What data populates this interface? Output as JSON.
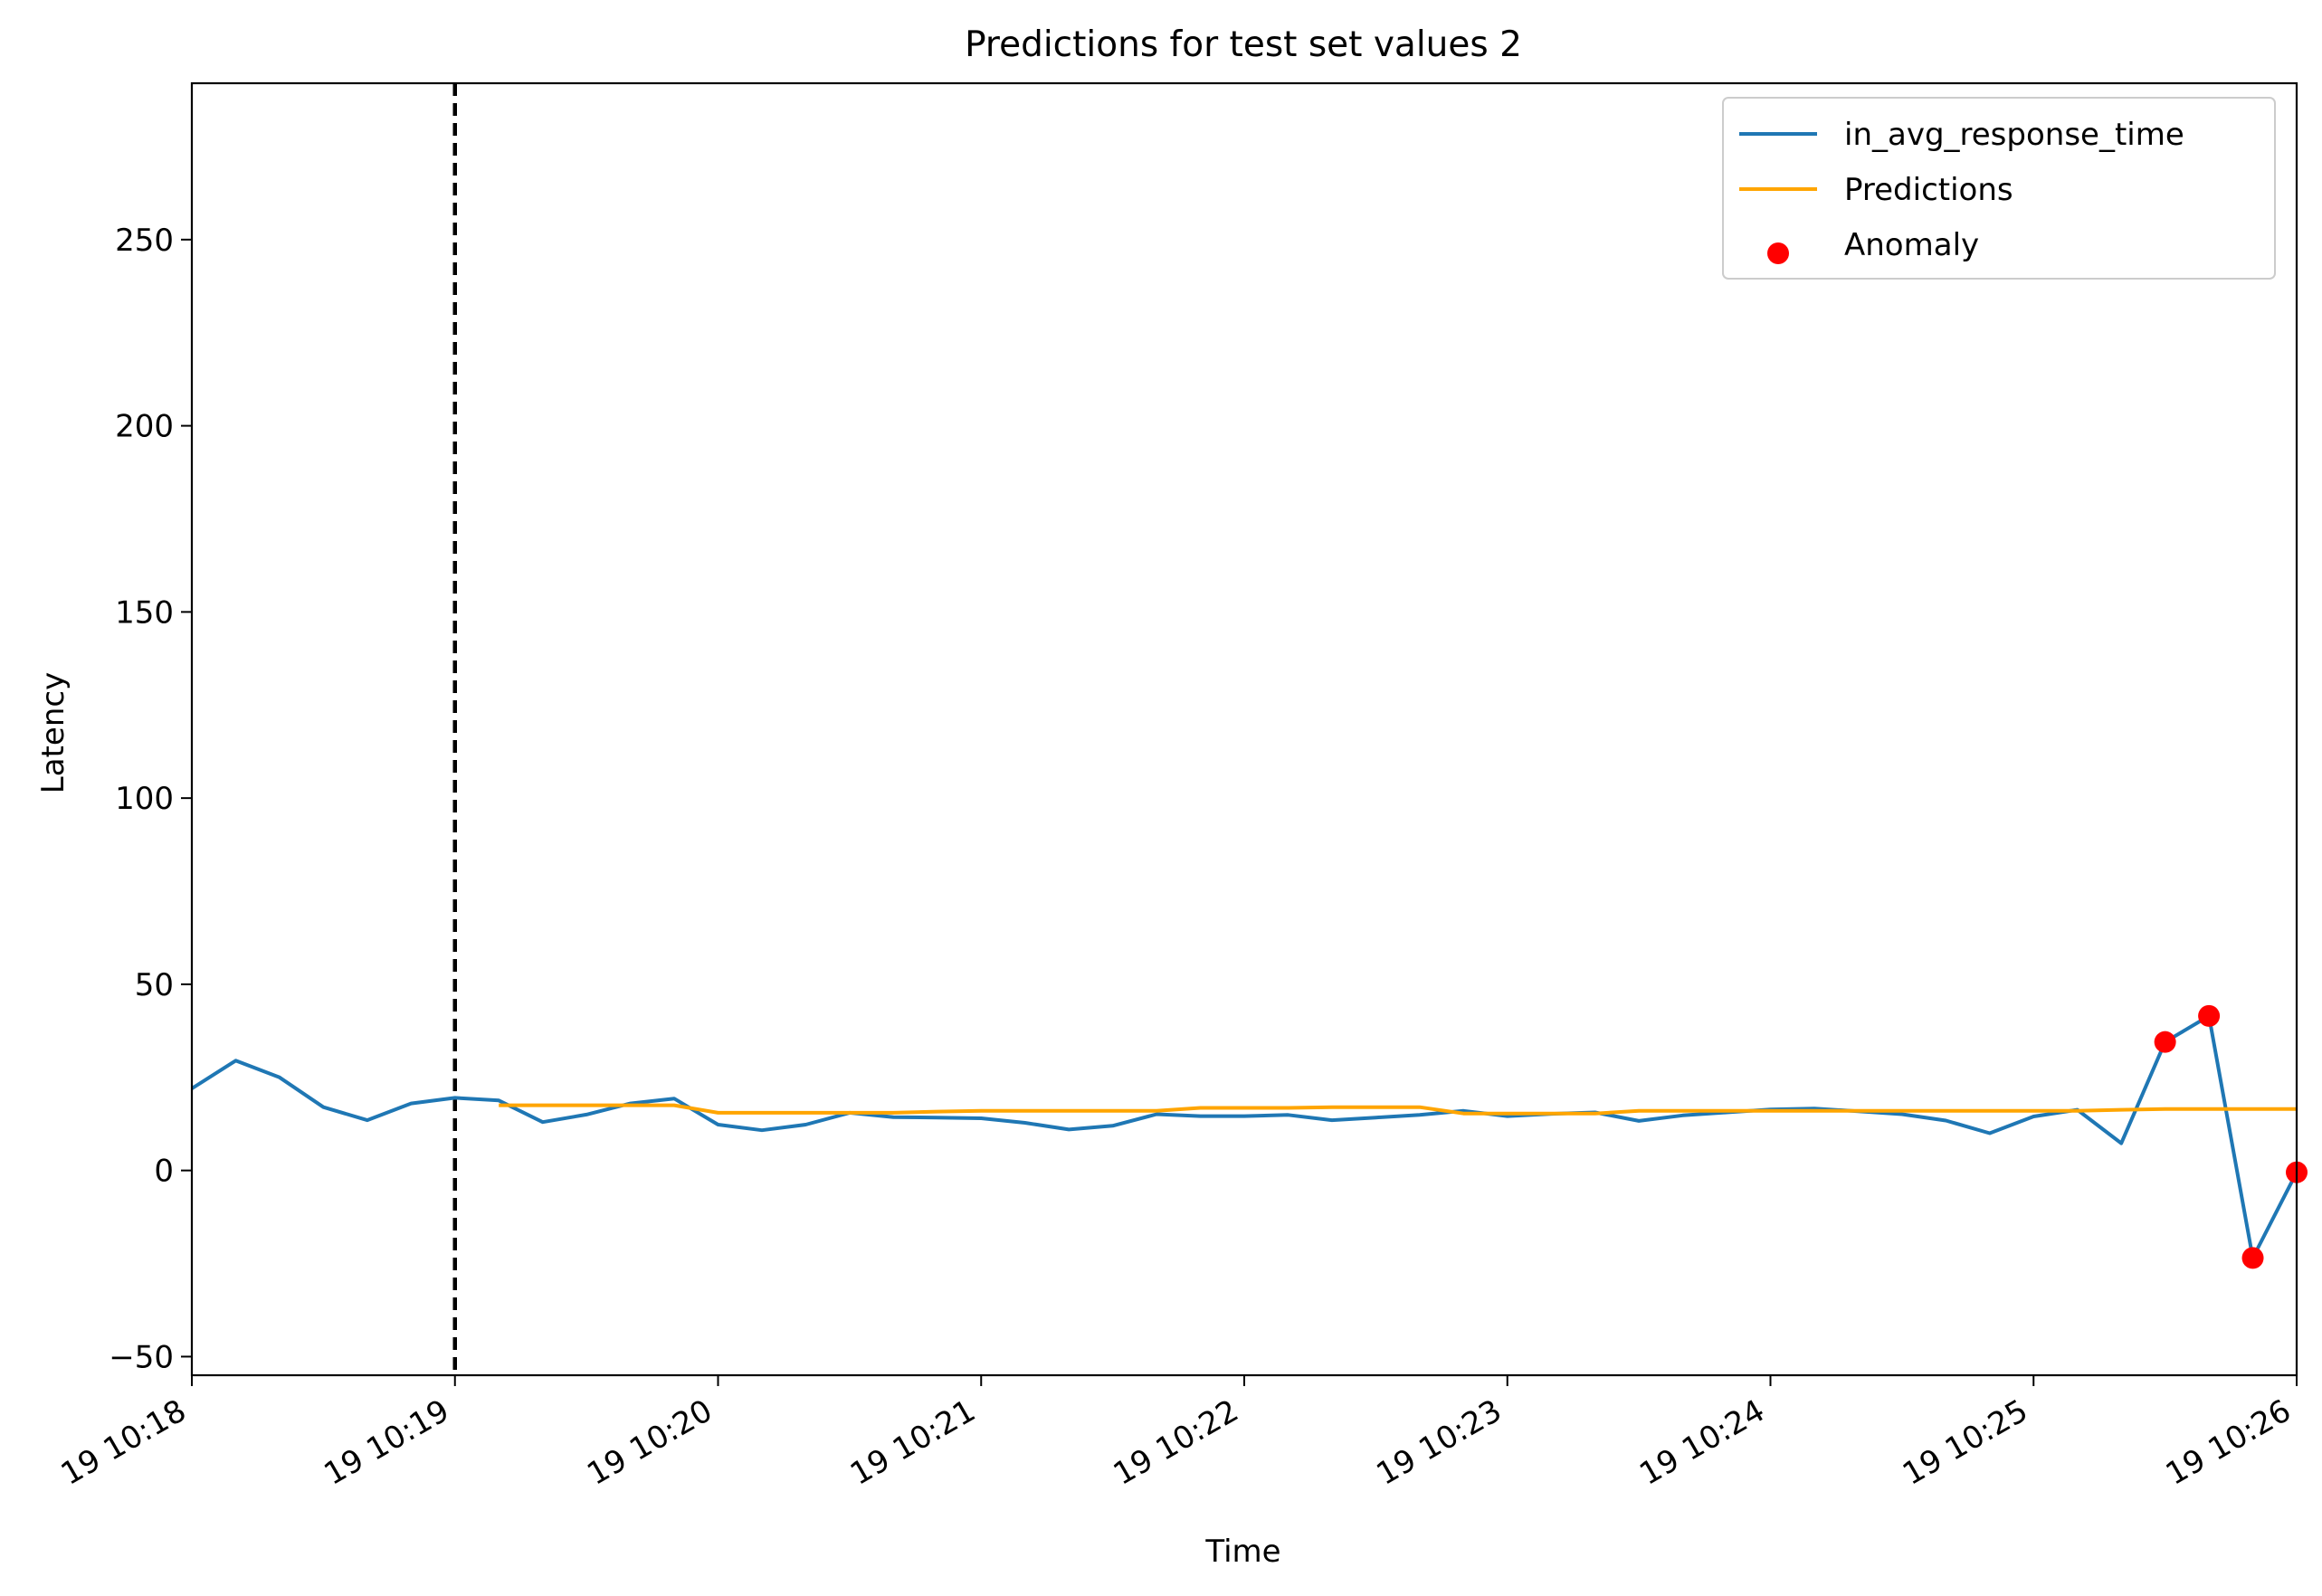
{
  "chart_data": {
    "type": "line",
    "title": "Predictions for test set values 2",
    "xlabel": "Time",
    "ylabel": "Latency",
    "xlim": [
      0,
      8
    ],
    "ylim": [
      -55,
      292
    ],
    "x_ticks": [
      {
        "x": 0,
        "label": "19 10:18"
      },
      {
        "x": 1,
        "label": "19 10:19"
      },
      {
        "x": 2,
        "label": "19 10:20"
      },
      {
        "x": 3,
        "label": "19 10:21"
      },
      {
        "x": 4,
        "label": "19 10:22"
      },
      {
        "x": 5,
        "label": "19 10:23"
      },
      {
        "x": 6,
        "label": "19 10:24"
      },
      {
        "x": 7,
        "label": "19 10:25"
      },
      {
        "x": 8,
        "label": "19 10:26"
      }
    ],
    "y_ticks": [
      -50,
      0,
      50,
      100,
      150,
      200,
      250
    ],
    "y_tick_labels": [
      "−50",
      "0",
      "50",
      "100",
      "150",
      "200",
      "250"
    ],
    "vline": {
      "x": 1,
      "style": "dashed",
      "color": "#000000"
    },
    "legend": {
      "position": "top-right"
    },
    "series": [
      {
        "name": "in_avg_response_time",
        "color": "#1f77b4",
        "kind": "line",
        "x": [
          0,
          0.1667,
          0.3333,
          0.5,
          0.6667,
          0.8333,
          1,
          1.1667,
          1.3333,
          1.5,
          1.6667,
          1.8333,
          2,
          2.1667,
          2.3333,
          2.5,
          2.6667,
          2.8333,
          3,
          3.1667,
          3.3333,
          3.5,
          3.6667,
          3.8333,
          4,
          4.1667,
          4.3333,
          4.5,
          4.6667,
          4.8333,
          5,
          5.1667,
          5.3333,
          5.5,
          5.6667,
          5.8333,
          6,
          6.1667,
          6.3333,
          6.5,
          6.6667,
          6.8333,
          7,
          7.1667,
          7.3333,
          7.5,
          7.6667,
          7.8333,
          8
        ],
        "values": [
          22,
          29.5,
          25,
          17,
          13.5,
          18,
          19.5,
          18.8,
          13,
          15,
          18,
          19.3,
          12.3,
          10.8,
          12.3,
          15.5,
          14.3,
          14.2,
          14,
          12.8,
          11,
          12,
          15.1,
          14.6,
          14.6,
          14.9,
          13.5,
          14.2,
          14.9,
          16,
          14.6,
          15.2,
          15.6,
          13.3,
          14.8,
          15.6,
          16.4,
          16.6,
          15.9,
          15.1,
          13.4,
          10,
          14.5,
          16.3,
          7.3,
          34.5,
          41.5,
          -23.5,
          -0.5
        ]
      },
      {
        "name": "Predictions",
        "color": "#ffa500",
        "kind": "line",
        "x": [
          1.1667,
          1.3333,
          1.5,
          1.6667,
          1.8333,
          2,
          2.1667,
          2.3333,
          2.5,
          2.6667,
          2.8333,
          3,
          3.1667,
          3.3333,
          3.5,
          3.6667,
          3.8333,
          4,
          4.1667,
          4.3333,
          4.5,
          4.6667,
          4.8333,
          5,
          5.1667,
          5.3333,
          5.5,
          5.6667,
          5.8333,
          6,
          6.1667,
          6.3333,
          6.5,
          6.6667,
          6.8333,
          7,
          7.1667,
          7.3333,
          7.5,
          7.6667,
          7.8333,
          8
        ],
        "values": [
          17.5,
          17.5,
          17.5,
          17.5,
          17.5,
          15.5,
          15.5,
          15.5,
          15.5,
          15.5,
          15.8,
          16,
          16,
          16,
          16,
          16,
          16.8,
          16.8,
          16.8,
          17,
          17,
          17,
          15.3,
          15.3,
          15.3,
          15.3,
          16,
          16,
          16,
          16,
          16,
          16,
          16,
          16,
          16,
          16,
          16,
          16.3,
          16.5,
          16.5,
          16.5,
          16.5
        ]
      },
      {
        "name": "Anomaly",
        "color": "#ff0000",
        "kind": "scatter",
        "x": [
          7.5,
          7.6667,
          7.8333,
          8
        ],
        "values": [
          34.5,
          41.5,
          -23.5,
          -0.5
        ]
      }
    ]
  }
}
